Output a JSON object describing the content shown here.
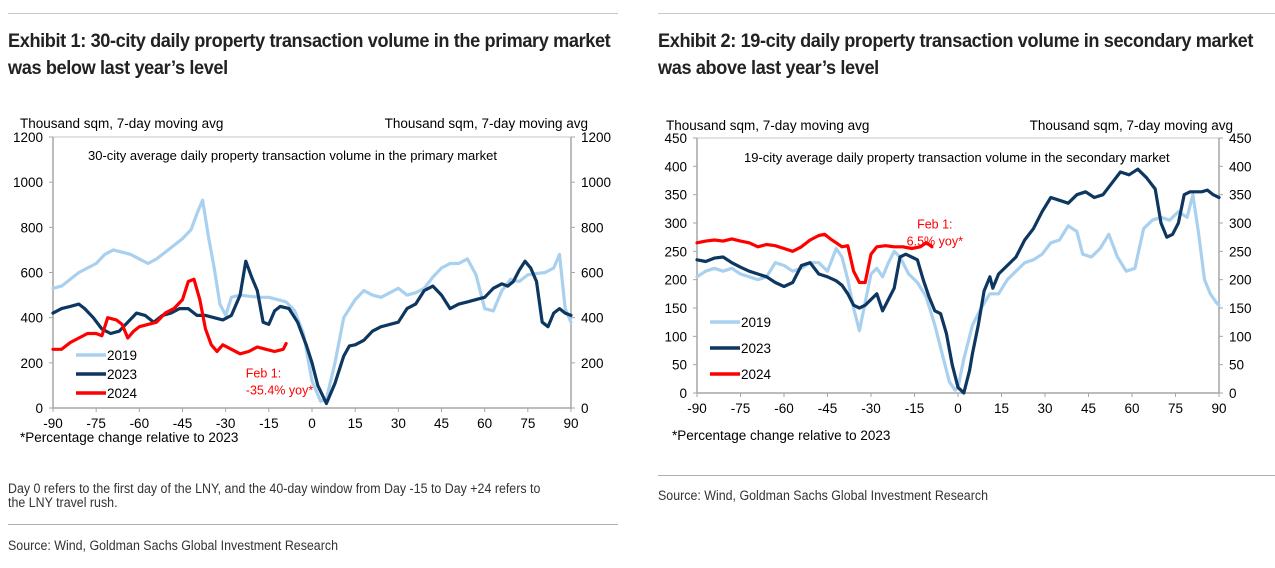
{
  "chart_data": [
    {
      "type": "line",
      "exhibit_title": "Exhibit 1: 30-city daily property transaction volume in the primary market was below last year’s level",
      "title": "30-city average daily property transaction volume in the primary market",
      "ylabel_left": "Thousand sqm, 7-day moving avg",
      "ylabel_right": "Thousand sqm, 7-day moving avg",
      "xlabel": "",
      "xlim": [
        -90,
        90
      ],
      "ylim": [
        0,
        1200
      ],
      "xticks": [
        -90,
        -75,
        -60,
        -45,
        -30,
        -15,
        0,
        15,
        30,
        45,
        60,
        75,
        90
      ],
      "yticks": [
        0,
        200,
        400,
        600,
        800,
        1000,
        1200
      ],
      "grid": false,
      "legend_position": "bottom-left",
      "annotation": {
        "lines": [
          "Feb 1:",
          "-35.4% yoy*"
        ],
        "color": "#ff0000",
        "x": -23,
        "y": 135
      },
      "footnote": "*Percentage change relative to 2023",
      "series": [
        {
          "name": "2019",
          "color": "#a9d1ef",
          "x": [
            -90,
            -87,
            -84,
            -81,
            -78,
            -75,
            -72,
            -69,
            -66,
            -63,
            -60,
            -57,
            -54,
            -51,
            -48,
            -45,
            -42,
            -40,
            -38,
            -36,
            -34,
            -32,
            -30,
            -28,
            -25,
            -22,
            -18,
            -15,
            -12,
            -9,
            -6,
            -3,
            0,
            3,
            5,
            8,
            11,
            15,
            18,
            21,
            24,
            27,
            30,
            33,
            36,
            39,
            42,
            45,
            48,
            51,
            54,
            57,
            60,
            63,
            66,
            69,
            72,
            75,
            78,
            81,
            84,
            86,
            88,
            90
          ],
          "y": [
            530,
            540,
            570,
            600,
            620,
            640,
            680,
            700,
            690,
            680,
            660,
            640,
            660,
            690,
            720,
            750,
            790,
            860,
            920,
            760,
            620,
            460,
            410,
            490,
            500,
            495,
            490,
            490,
            480,
            470,
            430,
            330,
            120,
            30,
            40,
            200,
            400,
            480,
            520,
            500,
            490,
            510,
            530,
            500,
            510,
            530,
            580,
            620,
            640,
            640,
            660,
            590,
            440,
            430,
            520,
            570,
            560,
            590,
            595,
            600,
            620,
            680,
            440,
            380
          ]
        },
        {
          "name": "2023",
          "color": "#0d3760",
          "x": [
            -90,
            -87,
            -84,
            -81,
            -79,
            -76,
            -73,
            -70,
            -67,
            -64,
            -61,
            -58,
            -55,
            -52,
            -49,
            -46,
            -43,
            -40,
            -37,
            -34,
            -31,
            -28,
            -25,
            -23,
            -21,
            -19,
            -17,
            -15,
            -13,
            -11,
            -8,
            -5,
            -2,
            0,
            2,
            5,
            8,
            11,
            13,
            15,
            18,
            21,
            24,
            27,
            30,
            33,
            36,
            39,
            42,
            45,
            48,
            51,
            54,
            57,
            60,
            63,
            66,
            68,
            70,
            72,
            74,
            76,
            78,
            80,
            82,
            84,
            86,
            88,
            90
          ],
          "y": [
            420,
            440,
            450,
            460,
            440,
            400,
            350,
            330,
            340,
            380,
            420,
            410,
            380,
            410,
            420,
            440,
            440,
            410,
            410,
            400,
            390,
            410,
            500,
            650,
            580,
            520,
            380,
            370,
            430,
            450,
            440,
            380,
            280,
            200,
            100,
            20,
            110,
            230,
            275,
            280,
            300,
            340,
            360,
            370,
            380,
            440,
            460,
            520,
            540,
            500,
            440,
            460,
            470,
            480,
            490,
            530,
            550,
            540,
            560,
            610,
            650,
            620,
            560,
            380,
            360,
            420,
            440,
            420,
            410
          ]
        },
        {
          "name": "2024",
          "color": "#ff0000",
          "x": [
            -90,
            -87,
            -84,
            -81,
            -78,
            -75,
            -73,
            -71,
            -68,
            -66,
            -64,
            -62,
            -60,
            -57,
            -54,
            -51,
            -48,
            -45,
            -43,
            -41,
            -39,
            -37,
            -35,
            -33,
            -31,
            -28,
            -25,
            -22,
            -19,
            -16,
            -13,
            -10,
            -9
          ],
          "y": [
            260,
            260,
            290,
            310,
            330,
            330,
            320,
            400,
            390,
            370,
            310,
            340,
            360,
            370,
            380,
            420,
            440,
            480,
            560,
            570,
            480,
            350,
            280,
            250,
            280,
            260,
            240,
            250,
            270,
            260,
            250,
            260,
            285
          ]
        }
      ]
    },
    {
      "type": "line",
      "exhibit_title": "Exhibit 2: 19-city daily property transaction volume in secondary market was above last year’s level",
      "title": "19-city average daily property transaction volume in the secondary market",
      "ylabel_left": "Thousand sqm, 7-day moving avg",
      "ylabel_right": "Thousand sqm, 7-day moving avg",
      "xlabel": "",
      "xlim": [
        -90,
        90
      ],
      "ylim": [
        0,
        450
      ],
      "xticks": [
        -90,
        -75,
        -60,
        -45,
        -30,
        -15,
        0,
        15,
        30,
        45,
        60,
        75,
        90
      ],
      "yticks": [
        0,
        50,
        100,
        150,
        200,
        250,
        300,
        350,
        400,
        450
      ],
      "grid": false,
      "legend_position": "bottom-left",
      "annotation": {
        "lines": [
          "Feb 1:",
          "6.5% yoy*"
        ],
        "color": "#ff0000",
        "x": -8,
        "y": 290
      },
      "footnote": "*Percentage change relative to 2023",
      "series": [
        {
          "name": "2019",
          "color": "#a9d1ef",
          "x": [
            -90,
            -87,
            -84,
            -81,
            -78,
            -75,
            -72,
            -69,
            -66,
            -63,
            -60,
            -57,
            -54,
            -51,
            -48,
            -45,
            -42,
            -40,
            -38,
            -36,
            -34,
            -32,
            -30,
            -28,
            -26,
            -24,
            -22,
            -20,
            -17,
            -14,
            -11,
            -8,
            -5,
            -3,
            -1,
            0,
            2,
            5,
            8,
            11,
            14,
            17,
            20,
            23,
            26,
            29,
            32,
            35,
            38,
            41,
            43,
            46,
            49,
            52,
            55,
            58,
            61,
            64,
            67,
            70,
            73,
            76,
            79,
            81,
            83,
            85,
            87,
            89,
            90
          ],
          "y": [
            205,
            215,
            220,
            215,
            220,
            210,
            205,
            200,
            205,
            230,
            225,
            215,
            220,
            230,
            230,
            215,
            255,
            240,
            200,
            150,
            110,
            160,
            210,
            220,
            205,
            230,
            250,
            240,
            210,
            195,
            170,
            120,
            60,
            20,
            5,
            10,
            60,
            120,
            150,
            175,
            175,
            200,
            215,
            230,
            235,
            245,
            265,
            270,
            295,
            285,
            245,
            240,
            255,
            280,
            240,
            215,
            220,
            290,
            305,
            310,
            305,
            320,
            310,
            350,
            280,
            200,
            175,
            160,
            155
          ]
        },
        {
          "name": "2023",
          "color": "#0d3760",
          "x": [
            -90,
            -87,
            -84,
            -81,
            -78,
            -75,
            -72,
            -69,
            -66,
            -63,
            -60,
            -57,
            -54,
            -51,
            -48,
            -45,
            -42,
            -40,
            -38,
            -36,
            -34,
            -32,
            -30,
            -28,
            -26,
            -24,
            -22,
            -20,
            -18,
            -16,
            -14,
            -12,
            -10,
            -8,
            -6,
            -4,
            -2,
            0,
            2,
            4,
            5,
            7,
            9,
            11,
            12,
            14,
            17,
            20,
            23,
            26,
            29,
            32,
            35,
            38,
            41,
            44,
            47,
            50,
            53,
            56,
            59,
            62,
            65,
            68,
            70,
            72,
            74,
            76,
            78,
            80,
            82,
            84,
            86,
            88,
            90
          ],
          "y": [
            235,
            232,
            238,
            240,
            230,
            222,
            215,
            210,
            205,
            195,
            188,
            195,
            225,
            230,
            210,
            205,
            198,
            190,
            175,
            155,
            150,
            155,
            165,
            175,
            145,
            165,
            185,
            240,
            245,
            240,
            235,
            200,
            170,
            145,
            140,
            105,
            50,
            10,
            0,
            40,
            70,
            120,
            180,
            205,
            185,
            210,
            225,
            240,
            270,
            290,
            320,
            345,
            340,
            335,
            350,
            355,
            345,
            350,
            370,
            390,
            385,
            395,
            380,
            360,
            300,
            275,
            280,
            300,
            350,
            355,
            355,
            355,
            358,
            350,
            345
          ]
        },
        {
          "name": "2024",
          "color": "#ff0000",
          "x": [
            -90,
            -87,
            -84,
            -81,
            -78,
            -75,
            -72,
            -69,
            -66,
            -63,
            -60,
            -57,
            -54,
            -51,
            -48,
            -46,
            -44,
            -42,
            -40,
            -38,
            -36,
            -34,
            -32,
            -30,
            -28,
            -25,
            -22,
            -19,
            -16,
            -13,
            -11,
            -10,
            -9
          ],
          "y": [
            265,
            268,
            270,
            268,
            272,
            268,
            265,
            258,
            262,
            260,
            255,
            250,
            258,
            270,
            278,
            280,
            272,
            265,
            258,
            260,
            215,
            195,
            195,
            245,
            258,
            260,
            258,
            258,
            255,
            258,
            265,
            262,
            258
          ]
        }
      ]
    }
  ],
  "exhibit1": {
    "title": "Exhibit 1: 30-city daily property transaction volume in the primary market was below last year’s level",
    "note_line1": "Day 0 refers to the first day of the LNY, and the 40-day window from Day -15 to Day +24 refers to",
    "note_line2": "the LNY travel rush.",
    "source": "Source: Wind, Goldman Sachs Global Investment Research"
  },
  "exhibit2": {
    "title": "Exhibit 2: 19-city daily property transaction volume in secondary market was above last year’s level",
    "source": "Source: Wind, Goldman Sachs Global Investment Research"
  }
}
